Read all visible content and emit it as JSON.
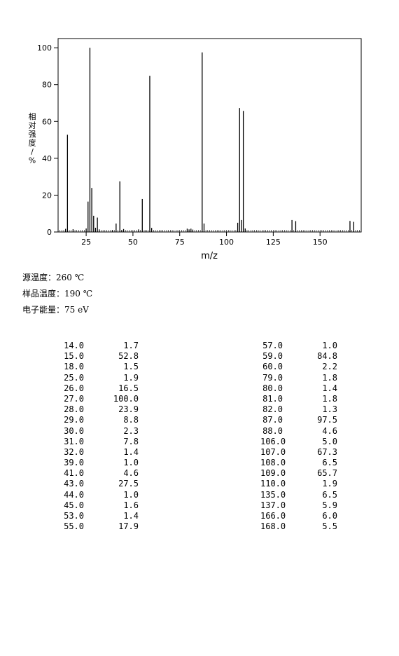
{
  "chart_data": {
    "type": "bar",
    "xlabel": "m/z",
    "ylabel": "相对强度/%",
    "xlim": [
      10,
      172
    ],
    "ylim": [
      0,
      105
    ],
    "xticks": [
      25,
      50,
      75,
      100,
      125,
      150
    ],
    "yticks": [
      0,
      20,
      40,
      60,
      80,
      100
    ],
    "grid": false,
    "peaks": [
      {
        "mz": 14.0,
        "intensity": 1.7
      },
      {
        "mz": 15.0,
        "intensity": 52.8
      },
      {
        "mz": 18.0,
        "intensity": 1.5
      },
      {
        "mz": 25.0,
        "intensity": 1.9
      },
      {
        "mz": 26.0,
        "intensity": 16.5
      },
      {
        "mz": 27.0,
        "intensity": 100.0
      },
      {
        "mz": 28.0,
        "intensity": 23.9
      },
      {
        "mz": 29.0,
        "intensity": 8.8
      },
      {
        "mz": 30.0,
        "intensity": 2.3
      },
      {
        "mz": 31.0,
        "intensity": 7.8
      },
      {
        "mz": 32.0,
        "intensity": 1.4
      },
      {
        "mz": 39.0,
        "intensity": 1.0
      },
      {
        "mz": 41.0,
        "intensity": 4.6
      },
      {
        "mz": 43.0,
        "intensity": 27.5
      },
      {
        "mz": 44.0,
        "intensity": 1.0
      },
      {
        "mz": 45.0,
        "intensity": 1.6
      },
      {
        "mz": 53.0,
        "intensity": 1.4
      },
      {
        "mz": 55.0,
        "intensity": 17.9
      },
      {
        "mz": 57.0,
        "intensity": 1.0
      },
      {
        "mz": 59.0,
        "intensity": 84.8
      },
      {
        "mz": 60.0,
        "intensity": 2.2
      },
      {
        "mz": 79.0,
        "intensity": 1.8
      },
      {
        "mz": 80.0,
        "intensity": 1.4
      },
      {
        "mz": 81.0,
        "intensity": 1.8
      },
      {
        "mz": 82.0,
        "intensity": 1.3
      },
      {
        "mz": 87.0,
        "intensity": 97.5
      },
      {
        "mz": 88.0,
        "intensity": 4.6
      },
      {
        "mz": 106.0,
        "intensity": 5.0
      },
      {
        "mz": 107.0,
        "intensity": 67.3
      },
      {
        "mz": 108.0,
        "intensity": 6.5
      },
      {
        "mz": 109.0,
        "intensity": 65.7
      },
      {
        "mz": 110.0,
        "intensity": 1.9
      },
      {
        "mz": 135.0,
        "intensity": 6.5
      },
      {
        "mz": 137.0,
        "intensity": 5.9
      },
      {
        "mz": 166.0,
        "intensity": 6.0
      },
      {
        "mz": 168.0,
        "intensity": 5.5
      }
    ]
  },
  "conditions": {
    "source_temp": "源温度：260 ℃",
    "sample_temp": "样品温度：190 ℃",
    "electron_energy": "电子能量：75 eV"
  },
  "peak_table": {
    "left": [
      [
        "14.0",
        "1.7"
      ],
      [
        "15.0",
        "52.8"
      ],
      [
        "18.0",
        "1.5"
      ],
      [
        "25.0",
        "1.9"
      ],
      [
        "26.0",
        "16.5"
      ],
      [
        "27.0",
        "100.0"
      ],
      [
        "28.0",
        "23.9"
      ],
      [
        "29.0",
        "8.8"
      ],
      [
        "30.0",
        "2.3"
      ],
      [
        "31.0",
        "7.8"
      ],
      [
        "32.0",
        "1.4"
      ],
      [
        "39.0",
        "1.0"
      ],
      [
        "41.0",
        "4.6"
      ],
      [
        "43.0",
        "27.5"
      ],
      [
        "44.0",
        "1.0"
      ],
      [
        "45.0",
        "1.6"
      ],
      [
        "53.0",
        "1.4"
      ],
      [
        "55.0",
        "17.9"
      ]
    ],
    "right": [
      [
        "57.0",
        "1.0"
      ],
      [
        "59.0",
        "84.8"
      ],
      [
        "60.0",
        "2.2"
      ],
      [
        "79.0",
        "1.8"
      ],
      [
        "80.0",
        "1.4"
      ],
      [
        "81.0",
        "1.8"
      ],
      [
        "82.0",
        "1.3"
      ],
      [
        "87.0",
        "97.5"
      ],
      [
        "88.0",
        "4.6"
      ],
      [
        "106.0",
        "5.0"
      ],
      [
        "107.0",
        "67.3"
      ],
      [
        "108.0",
        "6.5"
      ],
      [
        "109.0",
        "65.7"
      ],
      [
        "110.0",
        "1.9"
      ],
      [
        "135.0",
        "6.5"
      ],
      [
        "137.0",
        "5.9"
      ],
      [
        "166.0",
        "6.0"
      ],
      [
        "168.0",
        "5.5"
      ]
    ]
  }
}
